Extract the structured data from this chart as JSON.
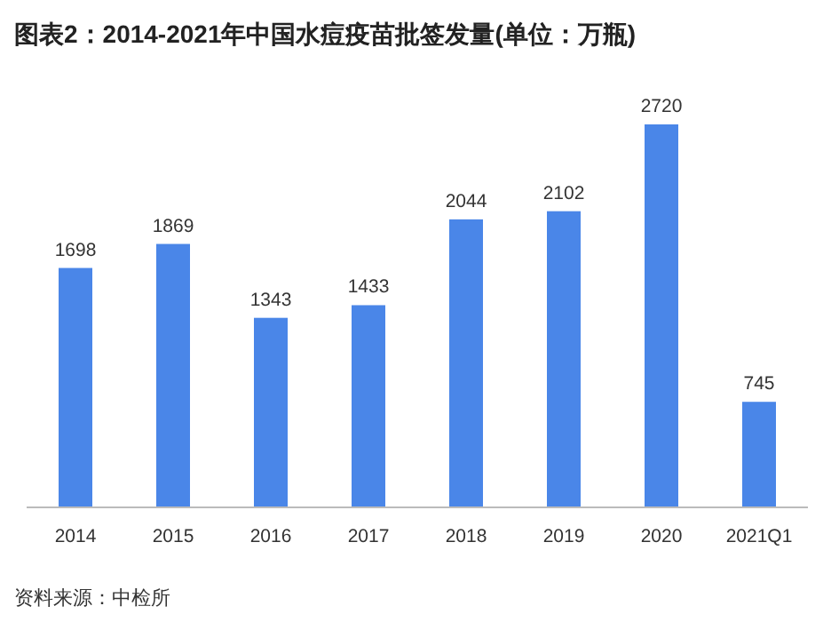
{
  "chart_data": {
    "type": "bar",
    "title": "图表2：2014-2021年中国水痘疫苗批签发量(单位：万瓶)",
    "categories": [
      "2014",
      "2015",
      "2016",
      "2017",
      "2018",
      "2019",
      "2020",
      "2021Q1"
    ],
    "values": [
      1698,
      1869,
      1343,
      1433,
      2044,
      2102,
      2720,
      745
    ],
    "color": "#4a86e8",
    "data_labels": true,
    "annotations": [
      "资料来源：中检所"
    ]
  }
}
